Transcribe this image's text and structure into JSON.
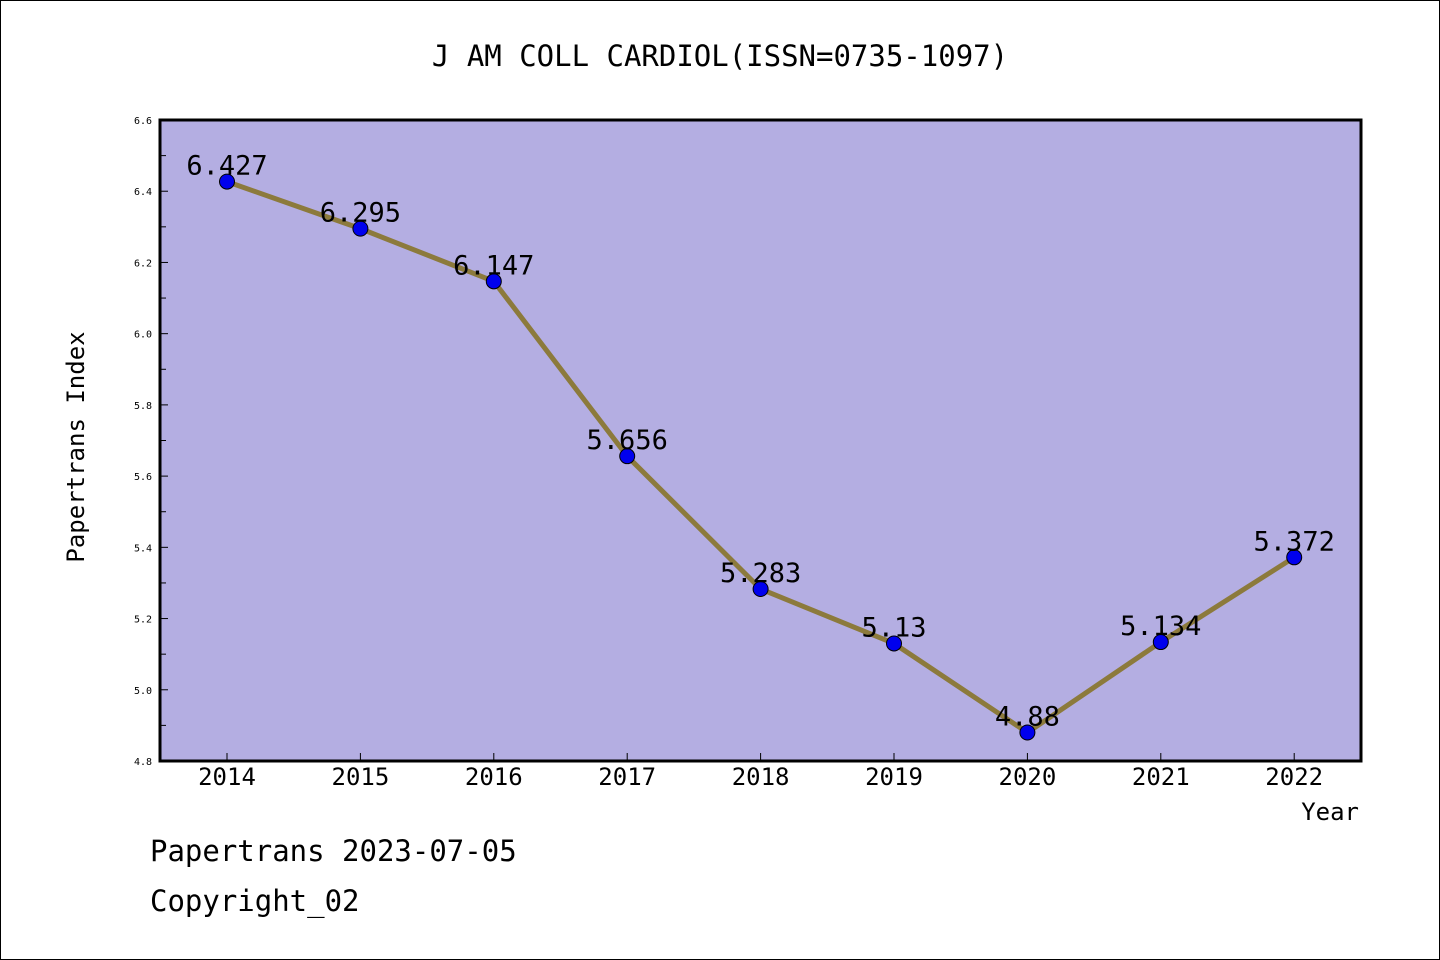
{
  "chart_data": {
    "type": "line",
    "title": "J AM COLL CARDIOL(ISSN=0735-1097)",
    "xlabel": "Year",
    "ylabel": "Papertrans Index",
    "categories": [
      "2014",
      "2015",
      "2016",
      "2017",
      "2018",
      "2019",
      "2020",
      "2021",
      "2022"
    ],
    "values": [
      6.427,
      6.295,
      6.147,
      5.656,
      5.283,
      5.13,
      4.88,
      5.134,
      5.372
    ],
    "data_labels": [
      "6.427",
      "6.295",
      "6.147",
      "5.656",
      "5.283",
      "5.13",
      "4.88",
      "5.134",
      "5.372"
    ],
    "ylim": [
      4.8,
      6.6
    ],
    "yticks": [
      "4.8",
      "5.0",
      "5.2",
      "5.4",
      "5.6",
      "5.8",
      "6.0",
      "6.2",
      "6.4",
      "6.6"
    ],
    "grid": false,
    "plot_background": "#b4aee2",
    "line_color": "#8c7a3c",
    "marker_color": "#0000ee"
  },
  "footer": {
    "date_text": "Papertrans 2023-07-05",
    "copyright_text": "Copyright_02"
  }
}
